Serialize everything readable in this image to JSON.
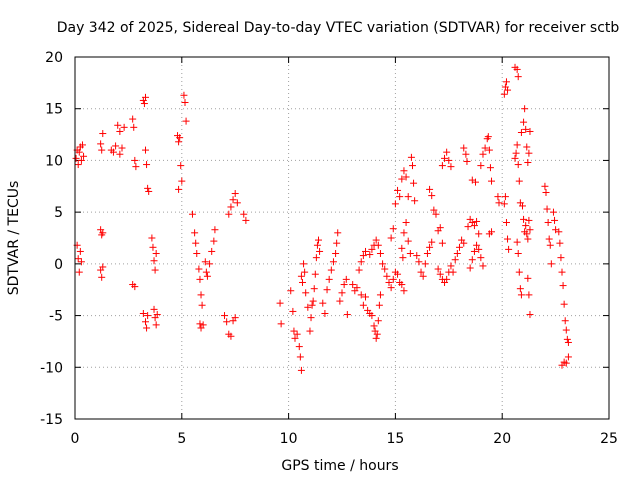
{
  "chart_data": {
    "type": "scatter",
    "title": "Day 342 of 2025, Sidereal Day-to-day VTEC variation (SDTVAR) for receiver sctb",
    "xlabel": "GPS time / hours",
    "ylabel": "SDTVAR / TECUs",
    "xlim": [
      0,
      25
    ],
    "ylim": [
      -15,
      20
    ],
    "xticks": [
      0,
      5,
      10,
      15,
      20,
      25
    ],
    "yticks": [
      -15,
      -10,
      -5,
      0,
      5,
      10,
      15,
      20
    ],
    "xtick_labels": [
      "0",
      "5",
      "10",
      "15",
      "20",
      "25"
    ],
    "ytick_labels": [
      "-15",
      "-10",
      "-5",
      "0",
      "5",
      "10",
      "15",
      "20"
    ],
    "grid": true,
    "marker": "plus",
    "color": "#ff0000",
    "series": [
      {
        "name": "sctb",
        "points": [
          [
            0.05,
            10.2
          ],
          [
            0.1,
            11.0
          ],
          [
            0.15,
            9.6
          ],
          [
            0.2,
            10.8
          ],
          [
            0.25,
            11.3
          ],
          [
            0.3,
            10.0
          ],
          [
            0.35,
            11.5
          ],
          [
            0.4,
            10.4
          ],
          [
            0.1,
            1.8
          ],
          [
            0.15,
            0.5
          ],
          [
            0.2,
            -0.8
          ],
          [
            0.25,
            1.2
          ],
          [
            0.3,
            0.2
          ],
          [
            1.2,
            11.6
          ],
          [
            1.25,
            11.0
          ],
          [
            1.3,
            12.6
          ],
          [
            1.2,
            3.3
          ],
          [
            1.25,
            2.8
          ],
          [
            1.3,
            3.0
          ],
          [
            1.2,
            -0.6
          ],
          [
            1.25,
            -1.3
          ],
          [
            1.3,
            -0.3
          ],
          [
            1.7,
            11.0
          ],
          [
            1.8,
            10.8
          ],
          [
            1.9,
            11.4
          ],
          [
            2.0,
            13.4
          ],
          [
            2.1,
            12.8
          ],
          [
            2.2,
            11.2
          ],
          [
            2.3,
            13.2
          ],
          [
            2.1,
            10.6
          ],
          [
            2.7,
            14.0
          ],
          [
            2.75,
            13.2
          ],
          [
            2.8,
            10.0
          ],
          [
            2.85,
            9.4
          ],
          [
            2.7,
            -2.0
          ],
          [
            2.8,
            -2.2
          ],
          [
            3.2,
            15.8
          ],
          [
            3.3,
            16.1
          ],
          [
            3.25,
            15.5
          ],
          [
            3.3,
            11.0
          ],
          [
            3.35,
            9.6
          ],
          [
            3.4,
            7.3
          ],
          [
            3.45,
            7.0
          ],
          [
            3.2,
            -4.8
          ],
          [
            3.3,
            -5.6
          ],
          [
            3.35,
            -6.2
          ],
          [
            3.4,
            -5.0
          ],
          [
            3.6,
            2.5
          ],
          [
            3.65,
            1.6
          ],
          [
            3.7,
            0.3
          ],
          [
            3.75,
            -0.6
          ],
          [
            3.8,
            1.0
          ],
          [
            3.7,
            -4.4
          ],
          [
            3.75,
            -5.2
          ],
          [
            3.8,
            -5.9
          ],
          [
            3.85,
            -4.9
          ],
          [
            4.8,
            12.4
          ],
          [
            4.85,
            11.8
          ],
          [
            4.9,
            12.2
          ],
          [
            4.95,
            9.5
          ],
          [
            5.0,
            8.0
          ],
          [
            4.85,
            7.2
          ],
          [
            5.1,
            16.3
          ],
          [
            5.15,
            15.6
          ],
          [
            5.2,
            13.8
          ],
          [
            5.5,
            4.8
          ],
          [
            5.6,
            3.0
          ],
          [
            5.65,
            2.0
          ],
          [
            5.7,
            1.0
          ],
          [
            5.8,
            -0.5
          ],
          [
            5.85,
            -1.5
          ],
          [
            5.9,
            -3.0
          ],
          [
            5.95,
            -4.0
          ],
          [
            5.85,
            -5.8
          ],
          [
            5.9,
            -6.2
          ],
          [
            6.0,
            -5.9
          ],
          [
            6.1,
            0.2
          ],
          [
            6.15,
            -0.8
          ],
          [
            6.2,
            -1.2
          ],
          [
            6.3,
            0.0
          ],
          [
            6.4,
            1.2
          ],
          [
            6.5,
            2.2
          ],
          [
            6.55,
            3.3
          ],
          [
            7.0,
            -5.0
          ],
          [
            7.1,
            -5.6
          ],
          [
            7.2,
            -6.8
          ],
          [
            7.3,
            -7.0
          ],
          [
            7.4,
            -5.5
          ],
          [
            7.5,
            -5.2
          ],
          [
            7.2,
            4.8
          ],
          [
            7.3,
            5.5
          ],
          [
            7.4,
            6.2
          ],
          [
            7.5,
            6.8
          ],
          [
            7.6,
            5.9
          ],
          [
            7.9,
            4.8
          ],
          [
            8.0,
            4.2
          ],
          [
            9.6,
            -3.8
          ],
          [
            9.65,
            -5.8
          ],
          [
            10.1,
            -2.6
          ],
          [
            10.2,
            -4.6
          ],
          [
            10.25,
            -6.5
          ],
          [
            10.3,
            -7.2
          ],
          [
            10.4,
            -6.8
          ],
          [
            10.5,
            -8.0
          ],
          [
            10.55,
            -9.0
          ],
          [
            10.6,
            -10.3
          ],
          [
            10.6,
            -1.2
          ],
          [
            10.65,
            -1.8
          ],
          [
            10.7,
            0.0
          ],
          [
            10.75,
            -0.8
          ],
          [
            10.8,
            -2.8
          ],
          [
            10.9,
            -4.2
          ],
          [
            11.0,
            -6.5
          ],
          [
            11.05,
            -5.2
          ],
          [
            11.1,
            -4.0
          ],
          [
            11.15,
            -3.6
          ],
          [
            11.2,
            -2.4
          ],
          [
            11.25,
            -1.0
          ],
          [
            11.3,
            0.6
          ],
          [
            11.35,
            1.8
          ],
          [
            11.4,
            2.3
          ],
          [
            11.45,
            1.2
          ],
          [
            11.6,
            -3.8
          ],
          [
            11.7,
            -4.8
          ],
          [
            11.8,
            -2.5
          ],
          [
            11.9,
            -1.5
          ],
          [
            12.0,
            -0.6
          ],
          [
            12.1,
            0.2
          ],
          [
            12.2,
            1.0
          ],
          [
            12.25,
            2.0
          ],
          [
            12.3,
            3.0
          ],
          [
            12.4,
            -3.6
          ],
          [
            12.5,
            -2.8
          ],
          [
            12.6,
            -2.0
          ],
          [
            12.7,
            -1.5
          ],
          [
            12.75,
            -4.9
          ],
          [
            13.0,
            -2.0
          ],
          [
            13.1,
            -2.6
          ],
          [
            13.2,
            -2.3
          ],
          [
            13.3,
            -0.6
          ],
          [
            13.4,
            0.2
          ],
          [
            13.5,
            0.8
          ],
          [
            13.6,
            1.2
          ],
          [
            13.4,
            -3.0
          ],
          [
            13.5,
            -4.0
          ],
          [
            13.6,
            -3.2
          ],
          [
            13.7,
            -4.5
          ],
          [
            13.8,
            -4.8
          ],
          [
            13.9,
            -5.0
          ],
          [
            14.0,
            -6.0
          ],
          [
            14.05,
            -6.5
          ],
          [
            14.1,
            -7.2
          ],
          [
            14.15,
            -6.8
          ],
          [
            14.2,
            -5.5
          ],
          [
            14.25,
            -4.0
          ],
          [
            14.3,
            -3.0
          ],
          [
            13.8,
            0.9
          ],
          [
            13.9,
            1.4
          ],
          [
            14.0,
            1.8
          ],
          [
            14.1,
            2.3
          ],
          [
            14.2,
            1.8
          ],
          [
            14.3,
            1.0
          ],
          [
            14.4,
            0.0
          ],
          [
            14.5,
            -0.5
          ],
          [
            14.6,
            -1.2
          ],
          [
            14.7,
            -1.8
          ],
          [
            14.8,
            -2.3
          ],
          [
            14.9,
            -1.5
          ],
          [
            15.0,
            -0.8
          ],
          [
            15.1,
            -1.0
          ],
          [
            15.2,
            -1.8
          ],
          [
            15.3,
            -2.0
          ],
          [
            15.4,
            -2.6
          ],
          [
            14.8,
            2.5
          ],
          [
            14.9,
            3.4
          ],
          [
            15.0,
            5.8
          ],
          [
            15.1,
            7.1
          ],
          [
            15.2,
            6.5
          ],
          [
            15.3,
            8.2
          ],
          [
            15.4,
            9.0
          ],
          [
            15.5,
            8.4
          ],
          [
            15.6,
            6.5
          ],
          [
            15.4,
            3.0
          ],
          [
            15.5,
            4.0
          ],
          [
            15.6,
            2.2
          ],
          [
            15.7,
            1.0
          ],
          [
            15.75,
            10.3
          ],
          [
            15.8,
            9.5
          ],
          [
            15.85,
            7.8
          ],
          [
            15.9,
            6.1
          ],
          [
            15.3,
            1.5
          ],
          [
            15.35,
            0.6
          ],
          [
            16.0,
            0.8
          ],
          [
            16.1,
            0.2
          ],
          [
            16.2,
            -0.8
          ],
          [
            16.3,
            -1.2
          ],
          [
            16.4,
            0.0
          ],
          [
            16.5,
            1.0
          ],
          [
            16.6,
            1.6
          ],
          [
            16.7,
            2.1
          ],
          [
            16.6,
            7.2
          ],
          [
            16.7,
            6.6
          ],
          [
            16.8,
            5.2
          ],
          [
            16.9,
            4.8
          ],
          [
            17.0,
            3.2
          ],
          [
            17.1,
            3.5
          ],
          [
            17.2,
            2.0
          ],
          [
            17.0,
            -0.5
          ],
          [
            17.1,
            -1.0
          ],
          [
            17.2,
            -1.5
          ],
          [
            17.3,
            -1.8
          ],
          [
            17.4,
            -1.5
          ],
          [
            17.5,
            -0.8
          ],
          [
            17.2,
            9.5
          ],
          [
            17.3,
            10.2
          ],
          [
            17.4,
            10.8
          ],
          [
            17.5,
            10.0
          ],
          [
            17.6,
            9.4
          ],
          [
            17.6,
            -0.2
          ],
          [
            17.7,
            -0.8
          ],
          [
            17.8,
            0.4
          ],
          [
            17.9,
            1.0
          ],
          [
            18.0,
            1.6
          ],
          [
            18.1,
            2.3
          ],
          [
            18.2,
            2.0
          ],
          [
            18.2,
            11.2
          ],
          [
            18.3,
            10.6
          ],
          [
            18.35,
            9.9
          ],
          [
            18.4,
            3.6
          ],
          [
            18.5,
            4.3
          ],
          [
            18.6,
            4.0
          ],
          [
            18.7,
            3.7
          ],
          [
            18.8,
            4.1
          ],
          [
            18.9,
            2.9
          ],
          [
            18.6,
            8.1
          ],
          [
            18.75,
            7.9
          ],
          [
            18.5,
            -0.4
          ],
          [
            18.6,
            0.4
          ],
          [
            18.7,
            1.2
          ],
          [
            18.8,
            1.8
          ],
          [
            18.9,
            1.4
          ],
          [
            19.0,
            0.6
          ],
          [
            19.1,
            -0.2
          ],
          [
            19.0,
            9.5
          ],
          [
            19.1,
            10.6
          ],
          [
            19.2,
            11.2
          ],
          [
            19.3,
            12.1
          ],
          [
            19.35,
            12.3
          ],
          [
            19.4,
            11.0
          ],
          [
            19.45,
            9.3
          ],
          [
            19.5,
            8.0
          ],
          [
            19.4,
            2.9
          ],
          [
            19.5,
            3.1
          ],
          [
            19.8,
            6.5
          ],
          [
            19.85,
            5.9
          ],
          [
            20.1,
            5.8
          ],
          [
            20.15,
            6.5
          ],
          [
            20.2,
            4.0
          ],
          [
            20.25,
            2.4
          ],
          [
            20.3,
            1.4
          ],
          [
            20.1,
            16.4
          ],
          [
            20.15,
            17.1
          ],
          [
            20.2,
            17.6
          ],
          [
            20.25,
            16.8
          ],
          [
            20.6,
            19.0
          ],
          [
            20.7,
            18.8
          ],
          [
            20.75,
            18.1
          ],
          [
            20.6,
            10.2
          ],
          [
            20.65,
            10.7
          ],
          [
            20.7,
            11.5
          ],
          [
            20.75,
            9.6
          ],
          [
            20.8,
            8.0
          ],
          [
            20.85,
            5.9
          ],
          [
            20.7,
            2.1
          ],
          [
            20.75,
            1.0
          ],
          [
            20.8,
            -0.8
          ],
          [
            20.85,
            -2.4
          ],
          [
            20.9,
            -3.0
          ],
          [
            20.9,
            12.7
          ],
          [
            21.0,
            13.7
          ],
          [
            21.05,
            15.0
          ],
          [
            21.1,
            13.0
          ],
          [
            21.15,
            11.3
          ],
          [
            21.2,
            9.8
          ],
          [
            21.25,
            10.7
          ],
          [
            21.3,
            12.8
          ],
          [
            20.95,
            5.6
          ],
          [
            21.0,
            4.3
          ],
          [
            21.05,
            3.1
          ],
          [
            21.1,
            3.7
          ],
          [
            21.15,
            2.9
          ],
          [
            21.2,
            2.4
          ],
          [
            21.25,
            4.2
          ],
          [
            21.3,
            3.3
          ],
          [
            21.2,
            -1.4
          ],
          [
            21.25,
            -3.0
          ],
          [
            21.3,
            -4.9
          ],
          [
            22.0,
            7.5
          ],
          [
            22.05,
            6.9
          ],
          [
            22.1,
            5.3
          ],
          [
            22.15,
            4.0
          ],
          [
            22.2,
            2.4
          ],
          [
            22.25,
            1.8
          ],
          [
            22.3,
            0.0
          ],
          [
            22.4,
            5.0
          ],
          [
            22.45,
            4.2
          ],
          [
            22.5,
            3.3
          ],
          [
            22.65,
            3.1
          ],
          [
            22.7,
            2.0
          ],
          [
            22.75,
            0.6
          ],
          [
            22.8,
            -0.8
          ],
          [
            22.85,
            -2.1
          ],
          [
            22.9,
            -3.9
          ],
          [
            22.95,
            -5.5
          ],
          [
            23.0,
            -6.4
          ],
          [
            23.05,
            -7.3
          ],
          [
            23.1,
            -7.6
          ],
          [
            22.8,
            -9.8
          ],
          [
            22.9,
            -9.5
          ],
          [
            23.0,
            -9.6
          ],
          [
            23.1,
            -9.0
          ]
        ]
      }
    ]
  }
}
